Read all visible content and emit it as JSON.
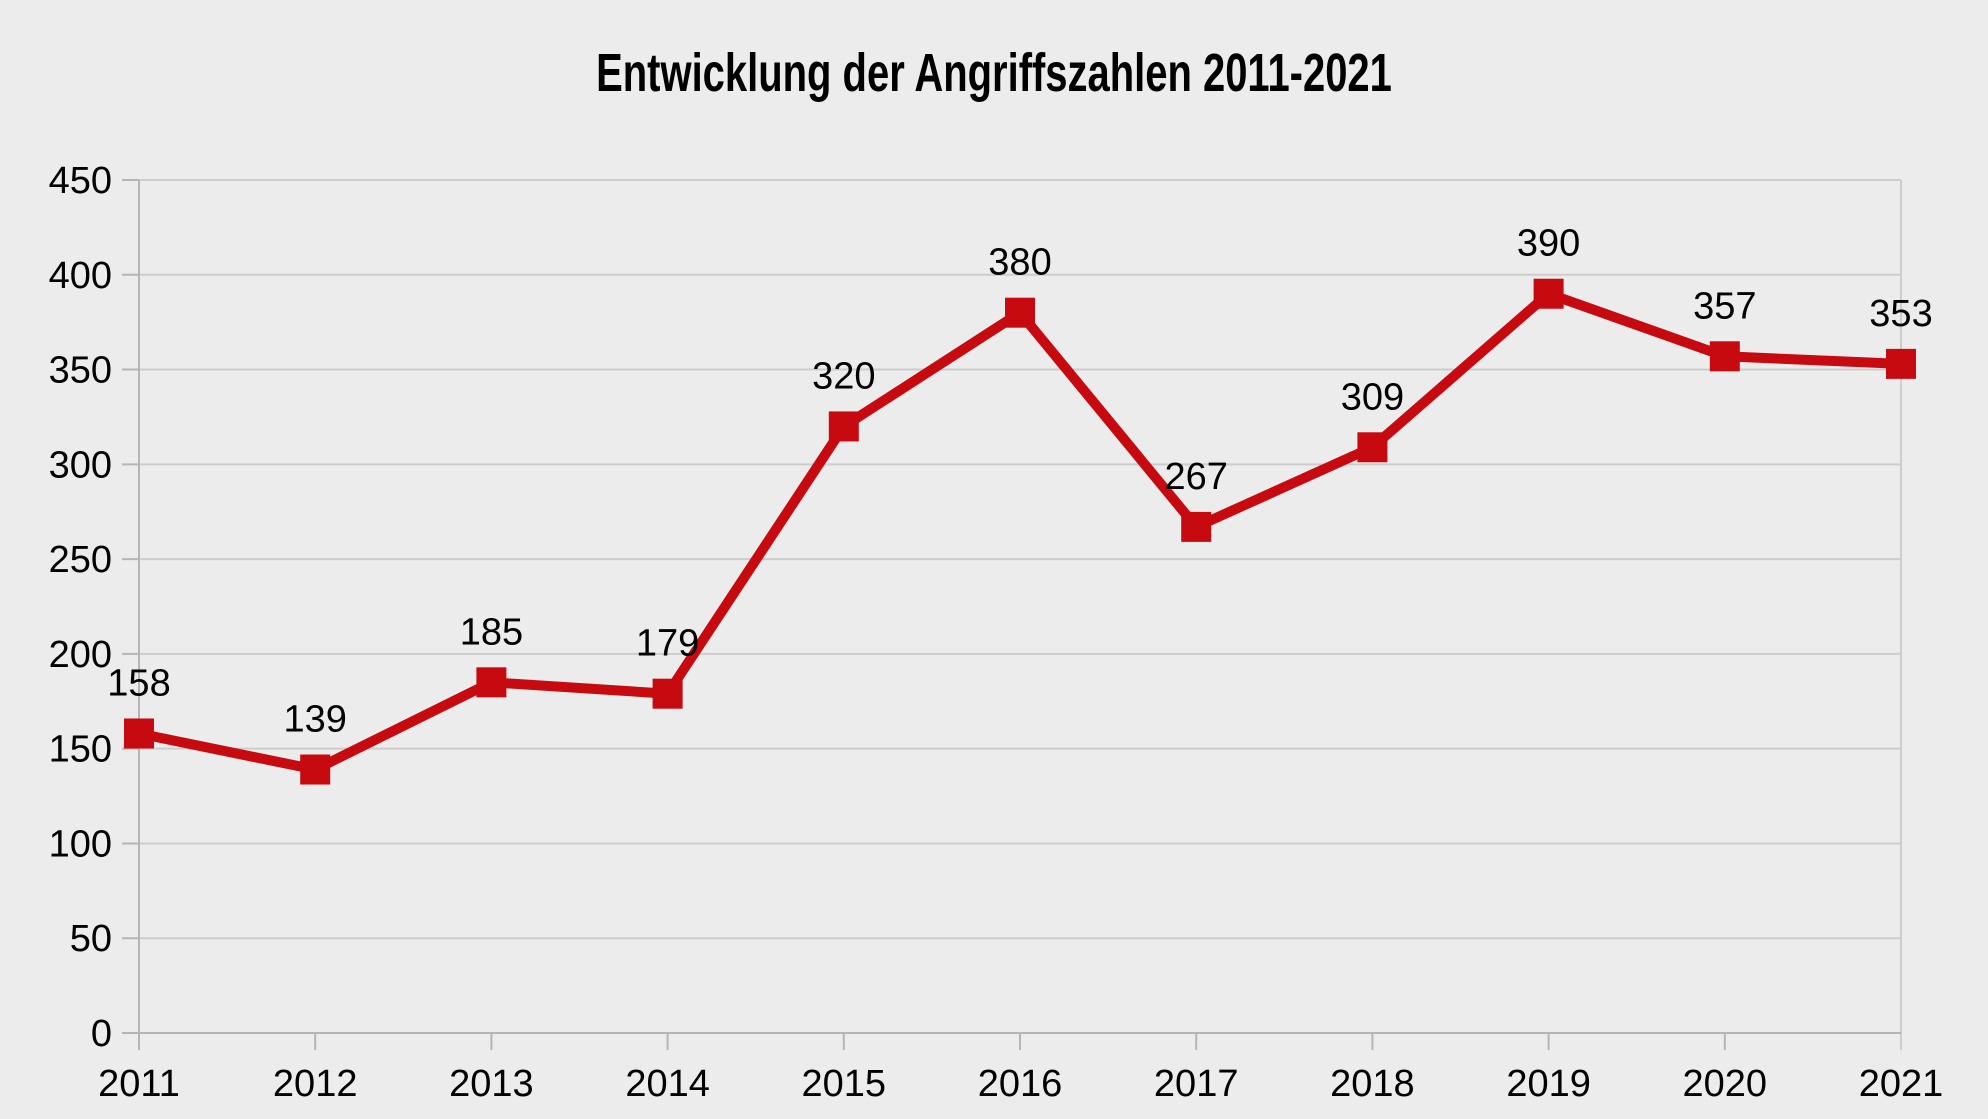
{
  "chart_data": {
    "type": "line",
    "title": "Entwicklung der Angriffszahlen 2011-2021",
    "categories": [
      "2011",
      "2012",
      "2013",
      "2014",
      "2015",
      "2016",
      "2017",
      "2018",
      "2019",
      "2020",
      "2021"
    ],
    "values": [
      158,
      139,
      185,
      179,
      320,
      380,
      267,
      309,
      390,
      357,
      353
    ],
    "xlabel": "",
    "ylabel": "",
    "ylim": [
      0,
      450
    ],
    "ytick_step": 50,
    "yticks": [
      0,
      50,
      100,
      150,
      200,
      250,
      300,
      350,
      400,
      450
    ],
    "grid": true,
    "legend": false,
    "data_labels": true,
    "marker": "square",
    "colors": {
      "series": "#c60a10",
      "background": "#ececec",
      "gridline": "#cdcdcd",
      "axis": "#b5b5b5",
      "text": "#000000"
    }
  }
}
